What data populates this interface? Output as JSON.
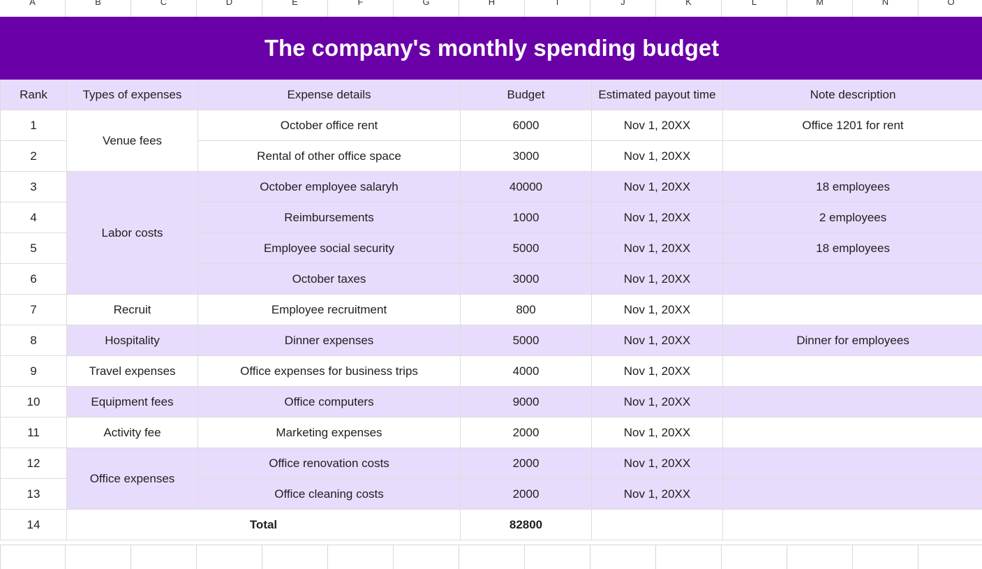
{
  "column_headers": [
    "A",
    "B",
    "C",
    "D",
    "E",
    "F",
    "G",
    "H",
    "I",
    "J",
    "K",
    "L",
    "M",
    "N",
    "O"
  ],
  "title": "The company's monthly spending budget",
  "headers": {
    "rank": "Rank",
    "types": "Types of expenses",
    "details": "Expense details",
    "budget": "Budget",
    "payout": "Estimated payout time",
    "note": "Note description"
  },
  "rows": [
    {
      "rank": "1",
      "type": "Venue fees",
      "details": "October office rent",
      "budget": "6000",
      "payout": "Nov 1, 20XX",
      "note": "Office 1201 for rent"
    },
    {
      "rank": "2",
      "type": "",
      "details": "Rental of other office space",
      "budget": "3000",
      "payout": "Nov 1, 20XX",
      "note": ""
    },
    {
      "rank": "3",
      "type": "Labor costs",
      "details": "October employee salaryh",
      "budget": "40000",
      "payout": "Nov 1, 20XX",
      "note": "18 employees"
    },
    {
      "rank": "4",
      "type": "",
      "details": "Reimbursements",
      "budget": "1000",
      "payout": "Nov 1, 20XX",
      "note": "2 employees"
    },
    {
      "rank": "5",
      "type": "",
      "details": "Employee social security",
      "budget": "5000",
      "payout": "Nov 1, 20XX",
      "note": "18 employees"
    },
    {
      "rank": "6",
      "type": "",
      "details": "October taxes",
      "budget": "3000",
      "payout": "Nov 1, 20XX",
      "note": ""
    },
    {
      "rank": "7",
      "type": "Recruit",
      "details": "Employee recruitment",
      "budget": "800",
      "payout": "Nov 1, 20XX",
      "note": ""
    },
    {
      "rank": "8",
      "type": "Hospitality",
      "details": "Dinner expenses",
      "budget": "5000",
      "payout": "Nov 1, 20XX",
      "note": "Dinner for employees"
    },
    {
      "rank": "9",
      "type": "Travel expenses",
      "details": "Office expenses for business trips",
      "budget": "4000",
      "payout": "Nov 1, 20XX",
      "note": ""
    },
    {
      "rank": "10",
      "type": "Equipment fees",
      "details": "Office computers",
      "budget": "9000",
      "payout": "Nov 1, 20XX",
      "note": ""
    },
    {
      "rank": "11",
      "type": "Activity fee",
      "details": "Marketing expenses",
      "budget": "2000",
      "payout": "Nov 1, 20XX",
      "note": ""
    },
    {
      "rank": "12",
      "type": "Office expenses",
      "details": "Office renovation costs",
      "budget": "2000",
      "payout": "Nov 1, 20XX",
      "note": ""
    },
    {
      "rank": "13",
      "type": "",
      "details": "Office cleaning costs",
      "budget": "2000",
      "payout": "Nov 1, 20XX",
      "note": ""
    }
  ],
  "total": {
    "rank": "14",
    "label": "Total",
    "budget": "82800"
  },
  "colors": {
    "title_bg": "#6a00a8",
    "title_text": "#ffffff",
    "band": "#e8dcfc"
  }
}
